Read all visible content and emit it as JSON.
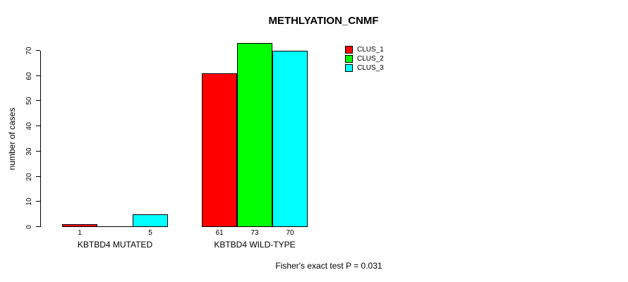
{
  "chart_data": {
    "type": "bar",
    "title": "METHLYATION_CNMF",
    "ylabel": "number of cases",
    "xlabel": "",
    "ylim": [
      0,
      70
    ],
    "yticks": [
      0,
      10,
      20,
      30,
      40,
      50,
      60,
      70
    ],
    "grid": false,
    "legend_position": "top-right-inside",
    "legend": [
      {
        "label": "CLUS_1",
        "color": "#ff0000"
      },
      {
        "label": "CLUS_2",
        "color": "#00ff00"
      },
      {
        "label": "CLUS_3",
        "color": "#00ffff"
      }
    ],
    "groups": [
      {
        "label": "KBTBD4 MUTATED",
        "bars": [
          {
            "series": "CLUS_1",
            "value": 1,
            "value_label": "1",
            "color": "#ff0000"
          },
          {
            "series": "CLUS_2",
            "value": 0,
            "value_label": "",
            "color": "#00ff00"
          },
          {
            "series": "CLUS_3",
            "value": 5,
            "value_label": "5",
            "color": "#00ffff"
          }
        ]
      },
      {
        "label": "KBTBD4 WILD-TYPE",
        "bars": [
          {
            "series": "CLUS_1",
            "value": 61,
            "value_label": "61",
            "color": "#ff0000"
          },
          {
            "series": "CLUS_2",
            "value": 73,
            "value_label": "73",
            "color": "#00ff00"
          },
          {
            "series": "CLUS_3",
            "value": 70,
            "value_label": "70",
            "color": "#00ffff"
          }
        ]
      }
    ],
    "annotation": "Fisher's exact test P = 0.031"
  },
  "colors": {
    "background": "#ffffff",
    "axis": "#000000",
    "text": "#000000"
  }
}
